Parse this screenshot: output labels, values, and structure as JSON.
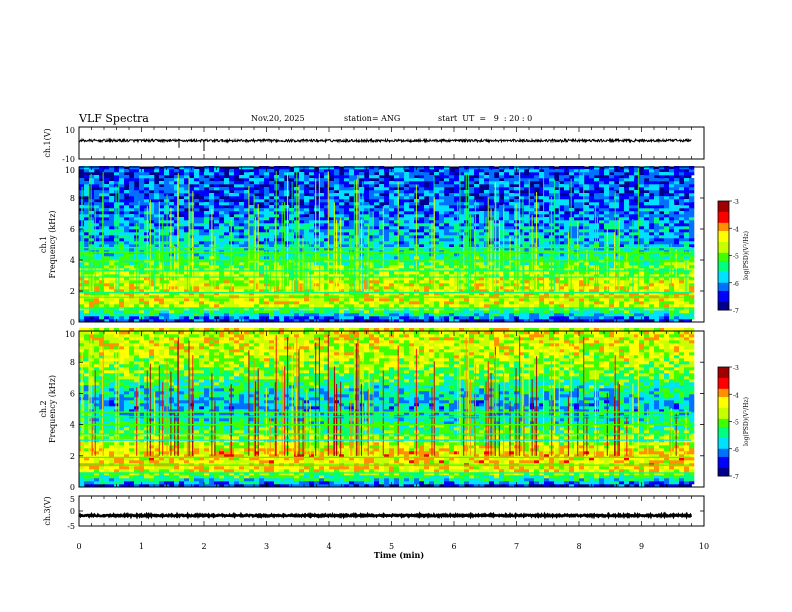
{
  "header": {
    "title": "VLF Spectra",
    "date": "Nov.20, 2025",
    "station": "station= ANG",
    "start_ut": "start  UT  =   9  : 20 : 0"
  },
  "chart_data": {
    "type": "heatmap",
    "title": "VLF Spectra",
    "xlabel": "Time  (min)",
    "xlim": [
      0,
      10
    ],
    "x_ticks": [
      "0",
      "1",
      "2",
      "3",
      "4",
      "5",
      "6",
      "7",
      "8",
      "9",
      "10"
    ],
    "data_end_min": 9.8,
    "panels": [
      {
        "id": "ch1-waveform",
        "type": "line",
        "ylabel": "ch.1(V)",
        "ylim": [
          -10,
          10
        ],
        "y_ticks": [
          "10",
          "-10"
        ],
        "baseline": 1.5,
        "noise_amplitude": 0.8,
        "spikes": [
          {
            "t": 1.6,
            "v": -3
          },
          {
            "t": 2.0,
            "v": -5
          }
        ]
      },
      {
        "id": "ch1-spectrogram",
        "type": "heatmap",
        "ylabel": "ch.1\nFrequency  (kHz)",
        "ylim": [
          0,
          10
        ],
        "y_ticks": [
          "0",
          "2",
          "4",
          "6",
          "8",
          "10"
        ],
        "colorbar": {
          "label": "log(PSD)(V²/Hz)",
          "range": [
            -7,
            -3
          ],
          "ticks": [
            "-3",
            "-4",
            "-5",
            "-6",
            "-7"
          ]
        },
        "band_levels_by_khz": [
          0.15,
          0.62,
          0.66,
          0.58,
          0.42,
          0.3,
          0.28,
          0.22,
          0.2,
          0.18,
          0.18
        ],
        "tone_lines_khz": [
          4.8,
          4.5,
          4.0,
          3.3,
          2.9,
          1.9,
          1.6,
          0.9
        ],
        "burst_intensity": 0.35
      },
      {
        "id": "ch2-spectrogram",
        "type": "heatmap",
        "ylabel": "ch.2\nFrequency  (kHz)",
        "ylim": [
          0,
          10
        ],
        "y_ticks": [
          "0",
          "2",
          "4",
          "6",
          "8",
          "10"
        ],
        "colorbar": {
          "label": "log(PSD)(V²/Hz)",
          "range": [
            -7,
            -3
          ],
          "ticks": [
            "-3",
            "-4",
            "-5",
            "-6",
            "-7"
          ]
        },
        "band_levels_by_khz": [
          0.15,
          0.66,
          0.7,
          0.55,
          0.4,
          0.3,
          0.35,
          0.5,
          0.58,
          0.62,
          0.64
        ],
        "tone_lines_khz": [
          4.8,
          4.5,
          4.0,
          3.4,
          3.0,
          1.9,
          1.4,
          0.9
        ],
        "burst_intensity": 0.55
      },
      {
        "id": "ch3-waveform",
        "type": "line",
        "ylabel": "ch.3(V)",
        "ylim": [
          -5,
          5
        ],
        "y_ticks": [
          "5",
          "0",
          "-5"
        ],
        "baseline": -1.5,
        "noise_amplitude": 0.25
      }
    ]
  },
  "colors": {
    "colormap": [
      "#00008b",
      "#0000ff",
      "#0070ff",
      "#00e0ff",
      "#00ff80",
      "#40ff00",
      "#c8ff00",
      "#ffff00",
      "#ff9000",
      "#ff0000",
      "#a00000"
    ],
    "axis": "#000000",
    "trace": "#000000"
  }
}
